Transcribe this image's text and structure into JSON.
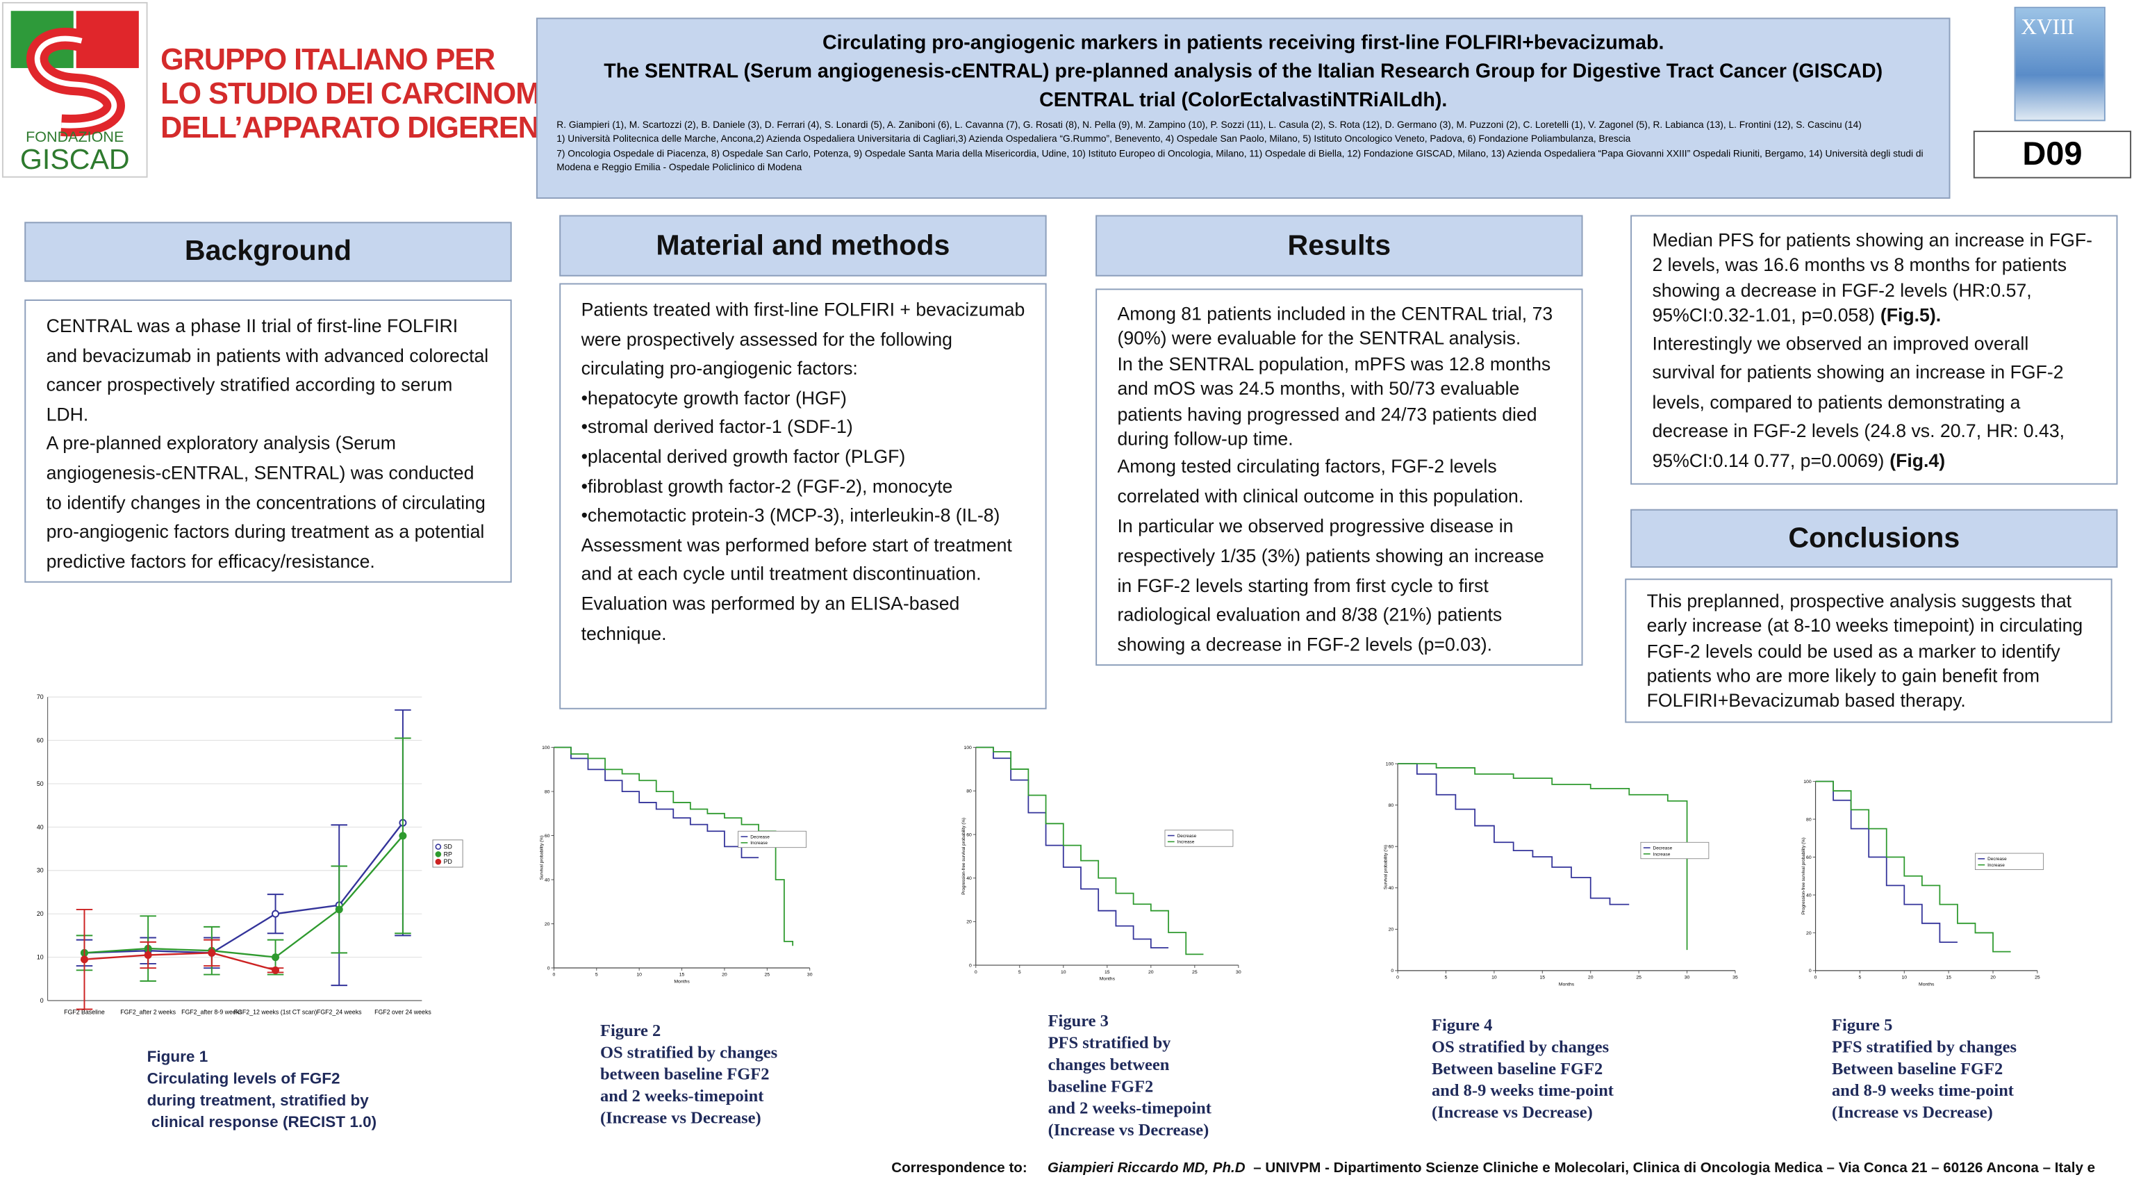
{
  "header": {
    "logo_text": [
      "FONDAZIONE",
      "GISCAD"
    ],
    "org_lines": [
      "GRUPPO ITALIANO PER",
      "LO STUDIO DEI CARCINOMI",
      "DELL’APPARATO DIGERENTE"
    ],
    "title_lines": [
      "Circulating pro-angiogenic markers in patients receiving first-line FOLFIRI+bevacizumab.",
      "The SENTRAL (Serum angiogenesis-cENTRAL) pre-planned analysis of the Italian Research Group for Digestive Tract Cancer (GISCAD)",
      "CENTRAL trial (ColorEctalvastiNTRiAlLdh)."
    ],
    "authors": "R. Giampieri (1), M. Scartozzi (2), B. Daniele (3), D. Ferrari (4), S. Lonardi (5), A. Zaniboni (6), L. Cavanna (7), G. Rosati (8), N. Pella (9), M. Zampino (10), P. Sozzi (11), L. Casula (2), S. Rota (12), D. Germano (3), M. Puzzoni (2), C. Loretelli (1), V. Zagonel (5), R. Labianca (13), L. Frontini (12), S. Cascinu (14)",
    "affiliations": [
      "1) Università Politecnica delle Marche, Ancona,2) Azienda Ospedaliera Universitaria di Cagliari,3) Azienda Ospedaliera “G.Rummo”, Benevento, 4) Ospedale San Paolo, Milano, 5) Istituto Oncologico Veneto, Padova, 6) Fondazione Poliambulanza, Brescia",
      "7) Oncologia Ospedale di Piacenza, 8) Ospedale San Carlo, Potenza, 9) Ospedale Santa Maria della Misericordia, Udine, 10) Istituto Europeo di Oncologia, Milano, 11) Ospedale di Biella, 12) Fondazione GISCAD, Milano, 13) Azienda Ospedaliera “Papa Giovanni XXIII” Ospedali Riuniti, Bergamo, 14) Università degli studi di Modena e Reggio Emilia - Ospedale Policlinico di Modena"
    ],
    "cover_text": "XVIII",
    "poster_code": "D09"
  },
  "background": {
    "heading": "Background",
    "paragraphs": [
      "CENTRAL was a phase II trial of first-line FOLFIRI and bevacizumab in patients with advanced colorectal cancer prospectively stratified according to serum LDH.",
      "A pre-planned exploratory analysis (Serum angiogenesis-cENTRAL, SENTRAL) was conducted to identify changes in the concentrations of circulating pro-angiogenic factors during treatment as a potential predictive factors for efficacy/resistance."
    ]
  },
  "methods": {
    "heading": "Material and methods",
    "paragraphs": [
      "Patients treated with first-line FOLFIRI + bevacizumab were prospectively assessed for the following circulating pro-angiogenic factors:",
      "•hepatocyte growth factor (HGF)",
      "•stromal derived factor-1 (SDF-1)",
      "•placental derived growth factor (PLGF)",
      "•fibroblast growth factor-2 (FGF-2), monocyte",
      "•chemotactic protein-3 (MCP-3), interleukin-8 (IL-8)",
      "Assessment was performed before start of treatment and at each cycle until treatment discontinuation. Evaluation was performed by an ELISA-based technique."
    ]
  },
  "results": {
    "heading": "Results",
    "paragraphs": [
      "Among 81 patients included in the CENTRAL trial, 73 (90%) were evaluable for the SENTRAL analysis.",
      "In the SENTRAL population, mPFS was 12.8 months and mOS was 24.5 months, with 50/73 evaluable patients having progressed and 24/73 patients died during follow-up time.",
      "Among tested circulating factors, FGF-2 levels correlated with clinical outcome in this population.",
      "In particular we observed progressive disease in respectively 1/35 (3%) patients showing an increase in FGF-2 levels starting from first cycle to first radiological evaluation and 8/38 (21%) patients showing a decrease in FGF-2 levels (p=0.03)."
    ]
  },
  "results_continued": {
    "paragraphs": [
      [
        "Median PFS for patients showing an increase in FGF-2 levels, was 16.6 months vs 8 months for patients showing a decrease in FGF-2 levels (HR:0.57, 95%CI:0.32-1.01, p=0.058)",
        "(Fig.5)."
      ],
      [
        "Interestingly we observed an improved overall survival for patients showing an increase in FGF-2 levels, compared to patients demonstrating a decrease in FGF-2 levels (24.8 vs. 20.7, HR: 0.43, 95%CI:0.14 0.77, p=0.0069)",
        "(Fig.4)"
      ]
    ]
  },
  "conclusions": {
    "heading": "Conclusions",
    "text": "This preplanned, prospective analysis suggests that early increase (at 8-10 weeks timepoint) in circulating FGF-2 levels could be used as a marker to identify patients who are more likely to gain benefit from FOLFIRI+Bevacizumab based therapy."
  },
  "figure_captions": [
    [
      "Figure 1",
      "Circulating levels of FGF2",
      "during treatment, stratified by",
      " clinical response (RECIST 1.0)"
    ],
    [
      "Figure 2",
      "OS stratified by changes",
      "between baseline FGF2",
      "and 2 weeks-timepoint",
      "(Increase vs Decrease)"
    ],
    [
      "Figure 3",
      "PFS stratified by",
      "changes between",
      "baseline FGF2",
      "and 2 weeks-timepoint",
      "(Increase vs Decrease)"
    ],
    [
      "Figure 4",
      "OS stratified by changes",
      "Between baseline FGF2",
      "and 8-9 weeks time-point",
      "(Increase vs Decrease)"
    ],
    [
      "Figure 5",
      "PFS stratified by changes",
      "Between baseline FGF2",
      "and 8-9 weeks time-point",
      "(Increase vs Decrease)"
    ]
  ],
  "footer": {
    "label": "Correspondence to:",
    "name": "Giampieri Riccardo MD, Ph.D",
    "details": "– UNIVPM  - Dipartimento Scienze Cliniche e Molecolari, Clinica di Oncologia Medica – Via Conca 21 – 60126 Ancona – Italy e"
  },
  "chart_data": [
    {
      "type": "line",
      "categories": [
        "FGF2 Baseline",
        "FGF2_after 2 weeks",
        "FGF2_after 8-9 weeks",
        "FGF2_12 weeks (1st CT scan)",
        "FGF2_24 weeks",
        "FGF2 over 24 weeks"
      ],
      "ylim": [
        0,
        70
      ],
      "yticks": [
        0,
        10,
        20,
        30,
        40,
        50,
        60,
        70
      ],
      "series": [
        {
          "name": "SD",
          "color": "#33339a",
          "values": [
            11,
            11.5,
            11,
            20,
            22,
            41
          ],
          "errors": [
            3,
            3,
            3.5,
            4.5,
            18.5,
            26
          ]
        },
        {
          "name": "RP",
          "color": "#2e9a2e",
          "values": [
            11,
            12,
            11.5,
            10,
            21,
            38
          ],
          "errors": [
            4,
            7.5,
            5.5,
            4,
            10,
            22.5
          ]
        },
        {
          "name": "PD",
          "color": "#cc2222",
          "values": [
            9.5,
            10.5,
            11,
            7,
            null,
            null
          ],
          "errors": [
            11.5,
            3,
            3,
            0.5,
            null,
            null
          ]
        }
      ]
    },
    {
      "type": "step",
      "x_label": "Months",
      "y_label": "Survival probability (%)",
      "xlim": [
        0,
        30
      ],
      "xticks": [
        0,
        5,
        10,
        15,
        20,
        25,
        30
      ],
      "ylim": [
        0,
        100
      ],
      "yticks": [
        0,
        20,
        40,
        60,
        80,
        100
      ],
      "series": [
        {
          "name": "Decrease",
          "color": "#33339a",
          "x": [
            0,
            2,
            4,
            6,
            8,
            10,
            12,
            14,
            16,
            18,
            20,
            22,
            24
          ],
          "y": [
            100,
            95,
            90,
            85,
            80,
            75,
            72,
            68,
            65,
            62,
            55,
            50,
            50
          ]
        },
        {
          "name": "Increase",
          "color": "#2e9a2e",
          "x": [
            0,
            2,
            4,
            6,
            8,
            10,
            12,
            14,
            16,
            18,
            20,
            22,
            24,
            26,
            27,
            28
          ],
          "y": [
            100,
            97,
            95,
            90,
            88,
            85,
            80,
            75,
            72,
            70,
            68,
            65,
            62,
            40,
            12,
            10
          ]
        }
      ]
    },
    {
      "type": "step",
      "x_label": "Months",
      "y_label": "Progression-free survival probability (%)",
      "xlim": [
        0,
        30
      ],
      "xticks": [
        0,
        5,
        10,
        15,
        20,
        25,
        30
      ],
      "ylim": [
        0,
        100
      ],
      "yticks": [
        0,
        20,
        40,
        60,
        80,
        100
      ],
      "series": [
        {
          "name": "Decrease",
          "color": "#33339a",
          "x": [
            0,
            2,
            4,
            6,
            8,
            10,
            12,
            14,
            16,
            18,
            20,
            22
          ],
          "y": [
            100,
            95,
            85,
            70,
            55,
            45,
            35,
            25,
            18,
            12,
            8,
            8
          ]
        },
        {
          "name": "Increase",
          "color": "#2e9a2e",
          "x": [
            0,
            2,
            4,
            6,
            8,
            10,
            12,
            14,
            16,
            18,
            20,
            22,
            24,
            26
          ],
          "y": [
            100,
            98,
            90,
            78,
            65,
            55,
            48,
            40,
            33,
            28,
            25,
            15,
            5,
            5
          ]
        }
      ]
    },
    {
      "type": "step",
      "x_label": "Months",
      "y_label": "Survival probability (%)",
      "xlim": [
        0,
        35
      ],
      "xticks": [
        0,
        5,
        10,
        15,
        20,
        25,
        30,
        35
      ],
      "ylim": [
        0,
        100
      ],
      "yticks": [
        0,
        20,
        40,
        60,
        80,
        100
      ],
      "series": [
        {
          "name": "Decrease",
          "color": "#33339a",
          "x": [
            0,
            2,
            4,
            6,
            8,
            10,
            12,
            14,
            16,
            18,
            20,
            22,
            24
          ],
          "y": [
            100,
            95,
            85,
            78,
            70,
            62,
            58,
            55,
            50,
            45,
            35,
            32,
            32
          ]
        },
        {
          "name": "Increase",
          "color": "#2e9a2e",
          "x": [
            0,
            4,
            8,
            12,
            16,
            20,
            24,
            28,
            30
          ],
          "y": [
            100,
            98,
            95,
            93,
            90,
            88,
            85,
            82,
            10
          ]
        }
      ]
    },
    {
      "type": "step",
      "x_label": "Months",
      "y_label": "Progression-free survival probability (%)",
      "xlim": [
        0,
        25
      ],
      "xticks": [
        0,
        5,
        10,
        15,
        20,
        25
      ],
      "ylim": [
        0,
        100
      ],
      "yticks": [
        0,
        20,
        40,
        60,
        80,
        100
      ],
      "series": [
        {
          "name": "Decrease",
          "color": "#33339a",
          "x": [
            0,
            2,
            4,
            6,
            8,
            10,
            12,
            14,
            16
          ],
          "y": [
            100,
            90,
            75,
            60,
            45,
            35,
            25,
            15,
            15
          ]
        },
        {
          "name": "Increase",
          "color": "#2e9a2e",
          "x": [
            0,
            2,
            4,
            6,
            8,
            10,
            12,
            14,
            16,
            18,
            20,
            22
          ],
          "y": [
            100,
            95,
            85,
            75,
            60,
            50,
            45,
            35,
            25,
            20,
            10,
            10
          ]
        }
      ]
    }
  ]
}
